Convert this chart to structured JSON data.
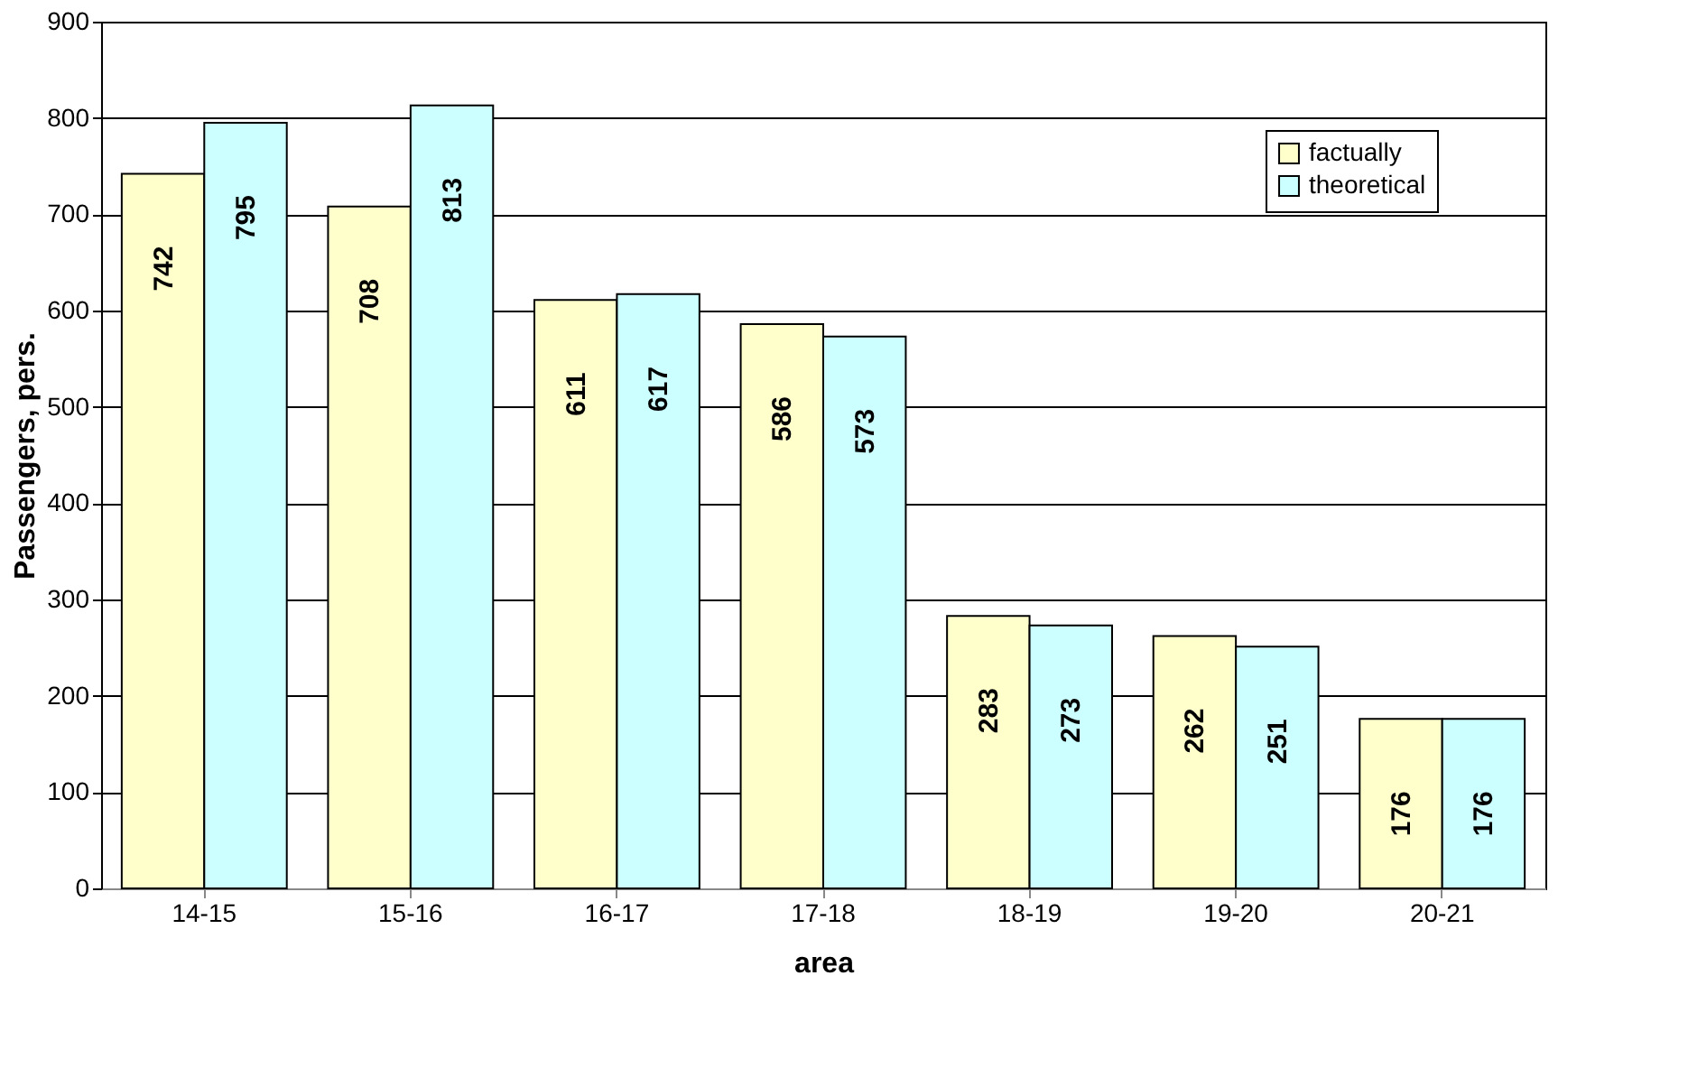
{
  "chart_data": {
    "type": "bar",
    "xlabel": "area",
    "ylabel": "Passengers, pers.",
    "categories": [
      "14-15",
      "15-16",
      "16-17",
      "17-18",
      "18-19",
      "19-20",
      "20-21"
    ],
    "series": [
      {
        "name": "factually",
        "color": "#ffffcc",
        "values": [
          742,
          708,
          611,
          586,
          283,
          262,
          176
        ]
      },
      {
        "name": "theoretical",
        "color": "#ccffff",
        "values": [
          795,
          813,
          617,
          573,
          273,
          251,
          176
        ]
      }
    ],
    "ylim": [
      0,
      900
    ],
    "yticks": [
      0,
      100,
      200,
      300,
      400,
      500,
      600,
      700,
      800,
      900
    ],
    "grid": "y",
    "legend": "top right",
    "data_labels": true
  }
}
